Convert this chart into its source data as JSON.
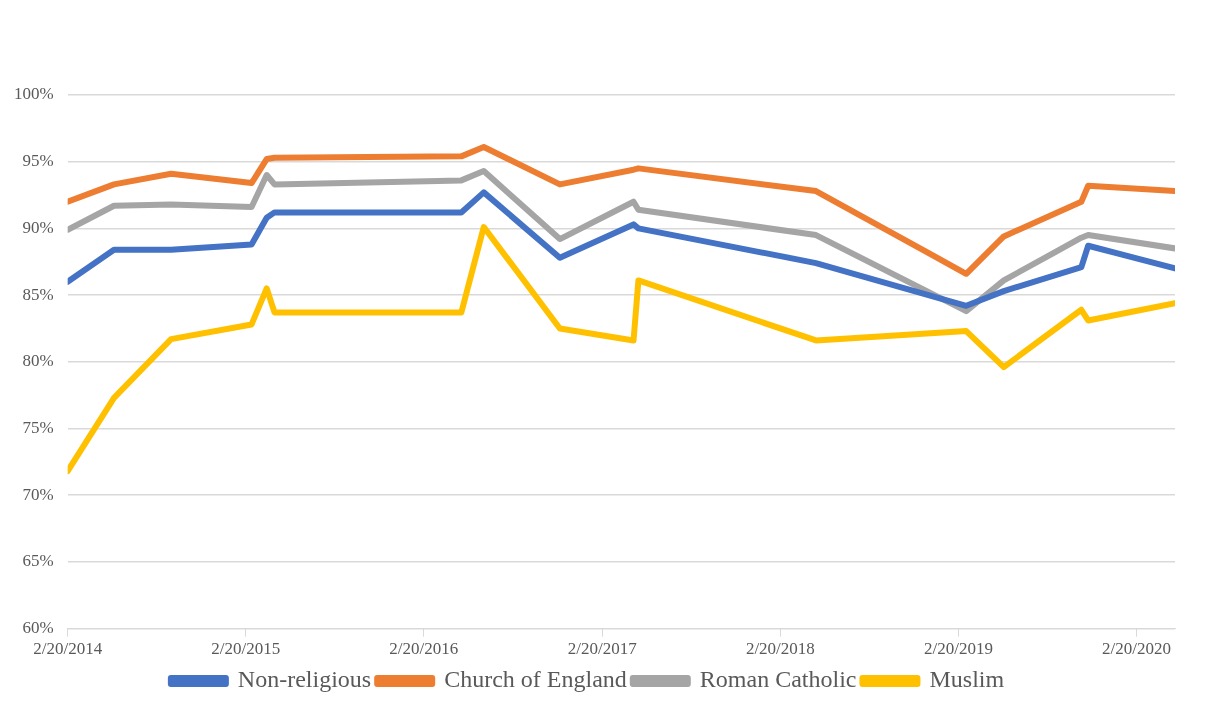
{
  "chart_data": {
    "type": "line",
    "x": [
      "2014-02-20",
      "2014-05-26",
      "2014-09-20",
      "2015-03-04",
      "2015-04-04",
      "2015-04-20",
      "2016-05-07",
      "2016-06-22",
      "2016-11-25",
      "2017-04-25",
      "2017-05-05",
      "2018-05-04",
      "2019-03-08",
      "2019-05-24",
      "2019-10-30",
      "2019-11-13",
      "2020-05-09"
    ],
    "series": [
      {
        "name": "Non-religious",
        "color": "#4472c4",
        "values": [
          86.0,
          88.4,
          88.4,
          88.8,
          90.8,
          91.2,
          91.2,
          92.7,
          87.8,
          90.3,
          90.0,
          87.4,
          84.2,
          85.3,
          87.1,
          88.7,
          87.0
        ]
      },
      {
        "name": "Church of England",
        "color": "#ed7d31",
        "values": [
          92.0,
          93.3,
          94.1,
          93.4,
          95.2,
          95.3,
          95.4,
          96.1,
          93.3,
          94.4,
          94.5,
          92.8,
          86.6,
          89.4,
          92.0,
          93.2,
          92.8
        ]
      },
      {
        "name": "Roman Catholic",
        "color": "#a5a5a5",
        "values": [
          89.9,
          91.7,
          91.8,
          91.6,
          94.0,
          93.3,
          93.6,
          94.3,
          89.2,
          92.0,
          91.4,
          89.5,
          83.8,
          86.1,
          89.3,
          89.5,
          88.5
        ]
      },
      {
        "name": "Muslim",
        "color": "#ffc000",
        "values": [
          71.8,
          77.3,
          81.7,
          82.8,
          85.5,
          83.7,
          83.7,
          90.1,
          82.5,
          81.6,
          86.1,
          81.6,
          82.3,
          79.6,
          83.9,
          83.1,
          84.4
        ]
      }
    ],
    "xlim": [
      "2014-02-20",
      "2020-05-09"
    ],
    "xticks": [
      {
        "value": "2014-02-20",
        "label": "2/20/2014"
      },
      {
        "value": "2015-02-20",
        "label": "2/20/2015"
      },
      {
        "value": "2016-02-20",
        "label": "2/20/2016"
      },
      {
        "value": "2017-02-20",
        "label": "2/20/2017"
      },
      {
        "value": "2018-02-20",
        "label": "2/20/2018"
      },
      {
        "value": "2019-02-20",
        "label": "2/20/2019"
      },
      {
        "value": "2020-02-20",
        "label": "2/20/2020"
      }
    ],
    "ylim": [
      60,
      100
    ],
    "yticks": [
      {
        "value": 60,
        "label": "60%"
      },
      {
        "value": 65,
        "label": "65%"
      },
      {
        "value": 70,
        "label": "70%"
      },
      {
        "value": 75,
        "label": "75%"
      },
      {
        "value": 80,
        "label": "80%"
      },
      {
        "value": 85,
        "label": "85%"
      },
      {
        "value": 90,
        "label": "90%"
      },
      {
        "value": 95,
        "label": "95%"
      },
      {
        "value": 100,
        "label": "100%"
      }
    ],
    "grid": "y",
    "legend": "bottom",
    "marker": "none",
    "line_style": "solid"
  }
}
